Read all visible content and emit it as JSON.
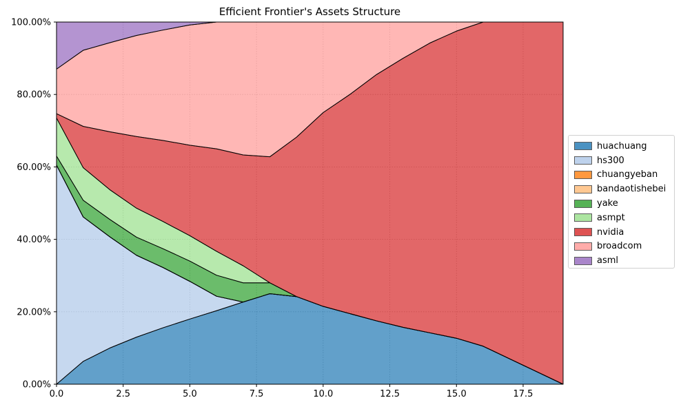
{
  "chart_data": {
    "type": "area",
    "stacked": true,
    "normalized": true,
    "title": "Efficient Frontier's Assets Structure",
    "xlabel": "",
    "ylabel": "",
    "xlim": [
      0,
      19
    ],
    "ylim": [
      0,
      1
    ],
    "grid": true,
    "legend_position": "right",
    "x_ticks": [
      0,
      2.5,
      5,
      7.5,
      10,
      12.5,
      15,
      17.5
    ],
    "x_tick_labels": [
      "0.0",
      "2.5",
      "5.0",
      "7.5",
      "10.0",
      "12.5",
      "15.0",
      "17.5"
    ],
    "y_ticks": [
      0,
      0.2,
      0.4,
      0.6,
      0.8,
      1.0
    ],
    "y_tick_labels": [
      "0.00%",
      "20.00%",
      "40.00%",
      "60.00%",
      "80.00%",
      "100.00%"
    ],
    "x": [
      0,
      1,
      2,
      3,
      4,
      5,
      6,
      7,
      8,
      9,
      10,
      11,
      12,
      13,
      14,
      15,
      16,
      17,
      18,
      19
    ],
    "series": [
      {
        "name": "huachuang",
        "color": "#1f77b4",
        "values": [
          0.0,
          0.063,
          0.1,
          0.13,
          0.156,
          0.18,
          0.203,
          0.227,
          0.25,
          0.242,
          0.215,
          0.195,
          0.175,
          0.157,
          0.142,
          0.127,
          0.105,
          0.07,
          0.035,
          0.0
        ]
      },
      {
        "name": "hs300",
        "color": "#aec7e8",
        "values": [
          0.605,
          0.399,
          0.307,
          0.226,
          0.166,
          0.104,
          0.04,
          0.0,
          0.0,
          0.0,
          0.0,
          0.0,
          0.0,
          0.0,
          0.0,
          0.0,
          0.0,
          0.0,
          0.0,
          0.0
        ]
      },
      {
        "name": "chuangyeban",
        "color": "#ff7f0e",
        "values": [
          0.0,
          0.0,
          0.0,
          0.0,
          0.0,
          0.0,
          0.0,
          0.0,
          0.0,
          0.0,
          0.0,
          0.0,
          0.0,
          0.0,
          0.0,
          0.0,
          0.0,
          0.0,
          0.0,
          0.0
        ]
      },
      {
        "name": "bandaotishebei",
        "color": "#ffbb78",
        "values": [
          0.0,
          0.0,
          0.0,
          0.0,
          0.0,
          0.0,
          0.0,
          0.0,
          0.0,
          0.0,
          0.0,
          0.0,
          0.0,
          0.0,
          0.0,
          0.0,
          0.0,
          0.0,
          0.0,
          0.0
        ]
      },
      {
        "name": "yake",
        "color": "#2ca02c",
        "values": [
          0.025,
          0.046,
          0.048,
          0.05,
          0.052,
          0.056,
          0.058,
          0.053,
          0.03,
          0.0,
          0.0,
          0.0,
          0.0,
          0.0,
          0.0,
          0.0,
          0.0,
          0.0,
          0.0,
          0.0
        ]
      },
      {
        "name": "asmpt",
        "color": "#98df8a",
        "values": [
          0.105,
          0.09,
          0.082,
          0.08,
          0.075,
          0.07,
          0.066,
          0.047,
          0.0,
          0.0,
          0.0,
          0.0,
          0.0,
          0.0,
          0.0,
          0.0,
          0.0,
          0.0,
          0.0,
          0.0
        ]
      },
      {
        "name": "nvidia",
        "color": "#d62728",
        "values": [
          0.012,
          0.114,
          0.16,
          0.198,
          0.224,
          0.25,
          0.283,
          0.306,
          0.348,
          0.44,
          0.535,
          0.605,
          0.68,
          0.743,
          0.8,
          0.848,
          0.895,
          0.93,
          0.965,
          1.0
        ]
      },
      {
        "name": "broadcom",
        "color": "#ff9896",
        "values": [
          0.123,
          0.21,
          0.246,
          0.279,
          0.305,
          0.332,
          0.35,
          0.367,
          0.372,
          0.318,
          0.25,
          0.2,
          0.145,
          0.1,
          0.058,
          0.025,
          0.0,
          0.0,
          0.0,
          0.0
        ]
      },
      {
        "name": "asml",
        "color": "#9467bd",
        "values": [
          0.13,
          0.078,
          0.057,
          0.037,
          0.022,
          0.008,
          0.0,
          0.0,
          0.0,
          0.0,
          0.0,
          0.0,
          0.0,
          0.0,
          0.0,
          0.0,
          0.0,
          0.0,
          0.0,
          0.0
        ]
      }
    ]
  }
}
